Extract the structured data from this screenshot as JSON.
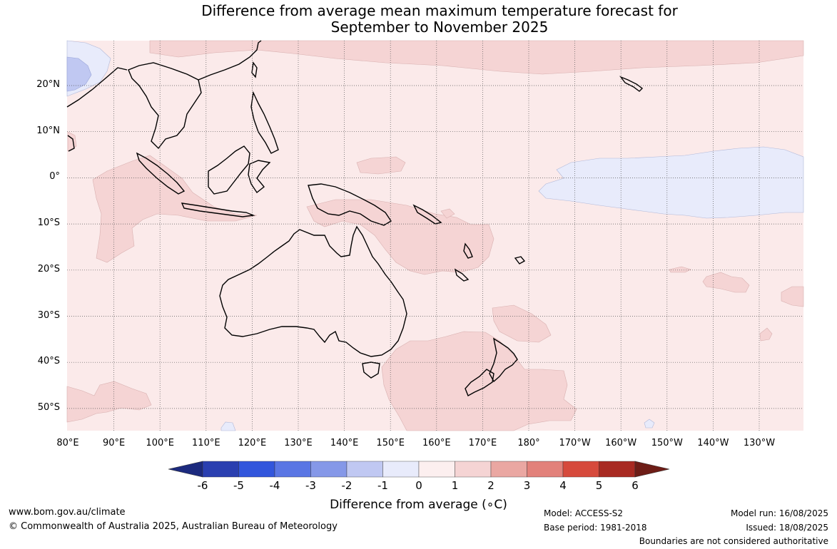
{
  "title": {
    "line1": "Difference from average mean maximum temperature forecast for",
    "line2": "September to November 2025"
  },
  "map": {
    "region": "Indo-Pacific and Australia",
    "lat_labels": [
      "20°N",
      "10°N",
      "0°",
      "10°S",
      "20°S",
      "30°S",
      "40°S",
      "50°S"
    ],
    "lon_labels": [
      "80°E",
      "90°E",
      "100°E",
      "110°E",
      "120°E",
      "130°E",
      "140°E",
      "150°E",
      "160°E",
      "170°E",
      "180°",
      "170°W",
      "160°W",
      "150°W",
      "140°W",
      "130°W"
    ],
    "background_anomaly_color": "#fbeaea",
    "warm_patch_color": "#f5d4d4",
    "cool_patch_color": "#e8ebfb",
    "cold_patch_color": "#c0c8f2",
    "land_outline_color": "#000000"
  },
  "colorbar": {
    "ticks": [
      "-6",
      "-5",
      "-4",
      "-3",
      "-2",
      "-1",
      "0",
      "1",
      "2",
      "3",
      "4",
      "5",
      "6"
    ],
    "colors": [
      "#1c2a7e",
      "#2a3fb0",
      "#3256dc",
      "#5a76e4",
      "#8598e8",
      "#c0c8f2",
      "#e8ebfb",
      "#fcefef",
      "#f5d4d4",
      "#eaa7a2",
      "#e2817a",
      "#d64a3c",
      "#a82a22",
      "#6e1d17"
    ],
    "label": "Difference from average (∘C)"
  },
  "footer": {
    "website": "www.bom.gov.au/climate",
    "copyright": "© Commonwealth of Australia 2025, Australian Bureau of Meteorology",
    "model": "Model: ACCESS-S2",
    "base_period": "Base period: 1981-2018",
    "model_run": "Model run: 16/08/2025",
    "issued": "Issued: 18/08/2025",
    "disclaimer": "Boundaries are not considered authoritative"
  }
}
